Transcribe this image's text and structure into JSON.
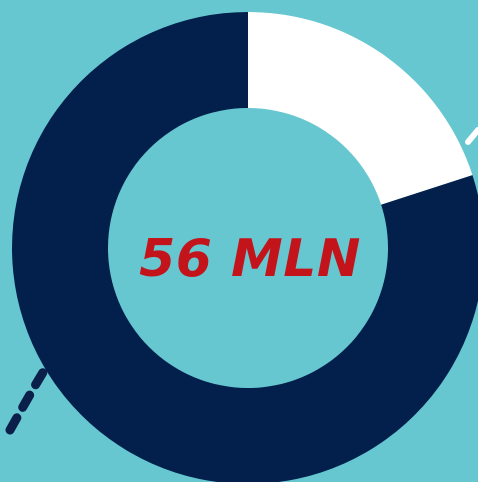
{
  "colors": {
    "background": "#66C7D0",
    "accent_text": "#C3141B",
    "dash_dark": "#0A1F4A",
    "dash_light": "#FFFFFF"
  },
  "chart_data": {
    "type": "pie",
    "style": "donut",
    "center_label": "56 MLN",
    "slices": [
      {
        "value": 20,
        "color": "#FFFFFF"
      },
      {
        "value": 80,
        "color": "#031F4B"
      }
    ]
  }
}
